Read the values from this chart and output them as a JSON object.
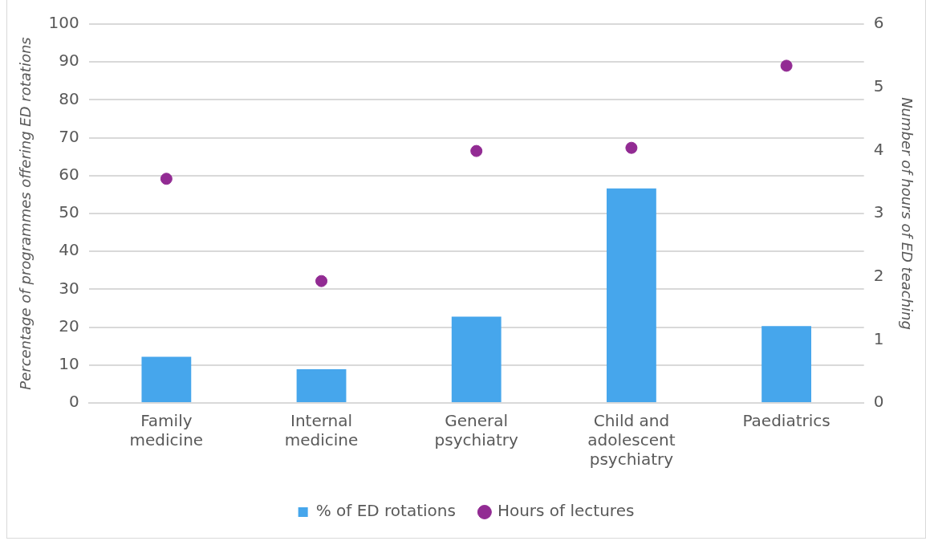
{
  "chart_data": {
    "type": "bar",
    "ylabel": "Percentage of programmes offering ED rotations",
    "y2label": "Number of hours of ED teaching",
    "categories": [
      "Family medicine",
      "Internal medicine",
      "General psychiatry",
      "Child and adolescent psychiatry",
      "Paediatrics"
    ],
    "series": [
      {
        "name": "% of ED rotations",
        "color": "#46a6ec",
        "values": [
          12.2,
          8.9,
          22.8,
          56.6,
          20.3
        ]
      },
      {
        "name": "Hours of lectures",
        "type": "scatter",
        "axis": "y2",
        "color": "#922b93",
        "values": [
          3.55,
          1.93,
          3.99,
          4.04,
          5.34
        ]
      }
    ],
    "ylim": [
      0,
      100
    ],
    "yticks": [
      0,
      10,
      20,
      30,
      40,
      50,
      60,
      70,
      80,
      90,
      100
    ],
    "y2lim": [
      0,
      6
    ],
    "y2ticks": [
      0,
      1,
      2,
      3,
      4,
      5,
      6
    ],
    "grid": "y",
    "legend": "bottom",
    "marker": "circle"
  }
}
